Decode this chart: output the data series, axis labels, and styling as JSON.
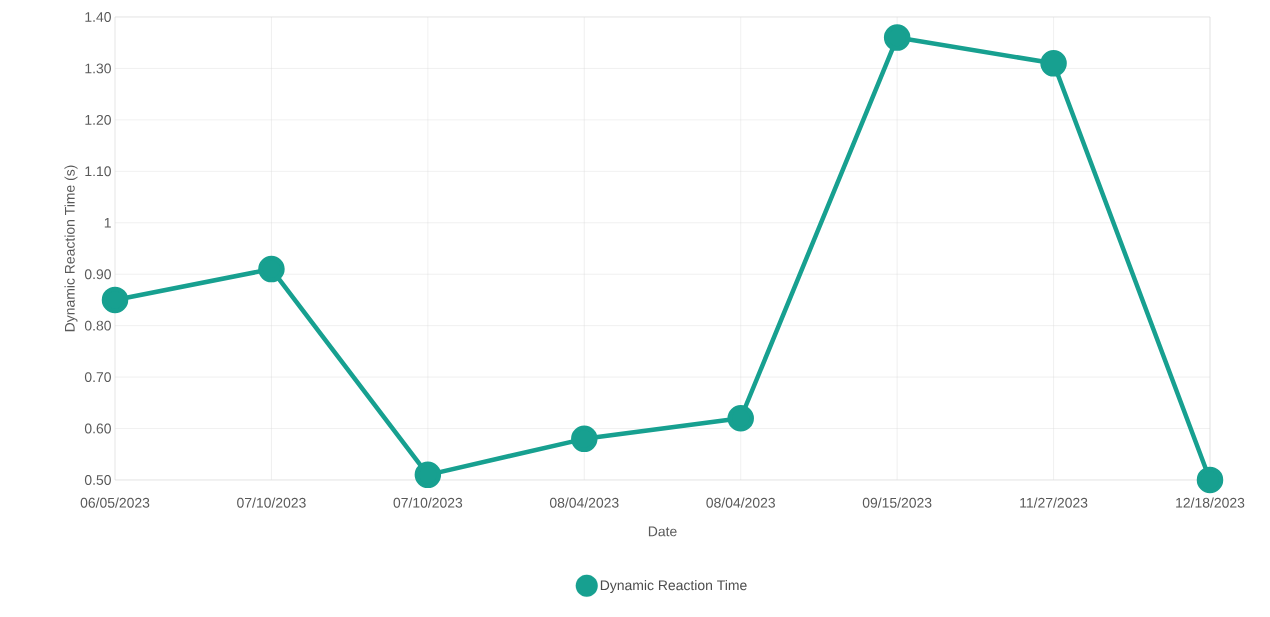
{
  "chart_data": {
    "type": "line",
    "xlabel": "Date",
    "ylabel": "Dynamic Reaction Time (s)",
    "categories": [
      "06/05/2023",
      "07/10/2023",
      "07/10/2023",
      "08/04/2023",
      "08/04/2023",
      "09/15/2023",
      "11/27/2023",
      "12/18/2023"
    ],
    "series": [
      {
        "name": "Dynamic Reaction Time",
        "color": "#17a090",
        "values": [
          0.85,
          0.91,
          0.51,
          0.58,
          0.62,
          1.36,
          1.31,
          0.5
        ]
      }
    ],
    "ylim": [
      0.5,
      1.4
    ],
    "yticks": [
      {
        "value": 0.5,
        "label": "0.50"
      },
      {
        "value": 0.6,
        "label": "0.60"
      },
      {
        "value": 0.7,
        "label": "0.70"
      },
      {
        "value": 0.8,
        "label": "0.80"
      },
      {
        "value": 0.9,
        "label": "0.90"
      },
      1,
      {
        "value": 1.1,
        "label": "1.10"
      },
      {
        "value": 1.2,
        "label": "1.20"
      },
      {
        "value": 1.3,
        "label": "1.30"
      },
      {
        "value": 1.4,
        "label": "1.40"
      }
    ],
    "grid": true,
    "legend": "bottom",
    "marker": "circle",
    "line_style": "solid"
  }
}
